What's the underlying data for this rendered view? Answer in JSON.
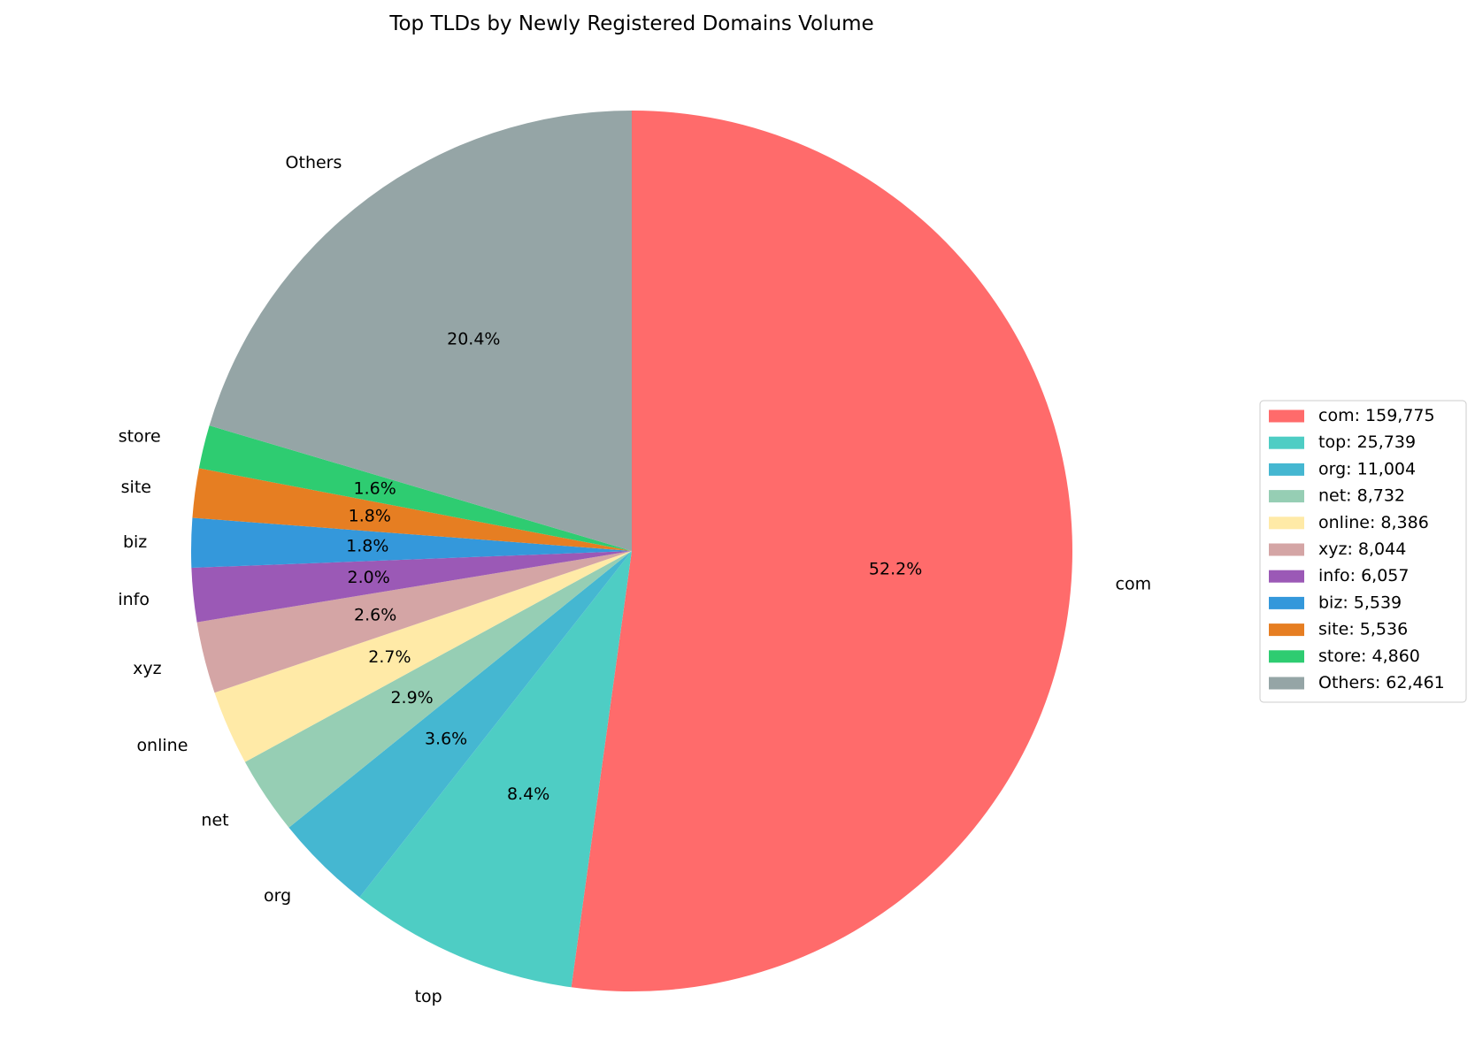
{
  "chart_data": {
    "type": "pie",
    "title": "Top TLDs by Newly Registered Domains Volume",
    "start_angle_deg": 90,
    "direction": "clockwise",
    "legend_position": "right",
    "legend_format": "{label}: {value}",
    "pct_format": "{pct}%",
    "slices": [
      {
        "label": "com",
        "value": 159775,
        "value_text": "159,775",
        "pct_text": "52.2",
        "color": "#FF6B6B"
      },
      {
        "label": "top",
        "value": 25739,
        "value_text": "25,739",
        "pct_text": "8.4",
        "color": "#4ECDC4"
      },
      {
        "label": "org",
        "value": 11004,
        "value_text": "11,004",
        "pct_text": "3.6",
        "color": "#45B7D1"
      },
      {
        "label": "net",
        "value": 8732,
        "value_text": "8,732",
        "pct_text": "2.9",
        "color": "#96CEB4"
      },
      {
        "label": "online",
        "value": 8386,
        "value_text": "8,386",
        "pct_text": "2.7",
        "color": "#FFEAA7"
      },
      {
        "label": "xyz",
        "value": 8044,
        "value_text": "8,044",
        "pct_text": "2.6",
        "color": "#D4A5A5"
      },
      {
        "label": "info",
        "value": 6057,
        "value_text": "6,057",
        "pct_text": "2.0",
        "color": "#9B59B6"
      },
      {
        "label": "biz",
        "value": 5539,
        "value_text": "5,539",
        "pct_text": "1.8",
        "color": "#3498DB"
      },
      {
        "label": "site",
        "value": 5536,
        "value_text": "5,536",
        "pct_text": "1.8",
        "color": "#E67E22"
      },
      {
        "label": "store",
        "value": 4860,
        "value_text": "4,860",
        "pct_text": "1.6",
        "color": "#2ECC71"
      },
      {
        "label": "Others",
        "value": 62461,
        "value_text": "62,461",
        "pct_text": "20.4",
        "color": "#95A5A6"
      }
    ]
  }
}
